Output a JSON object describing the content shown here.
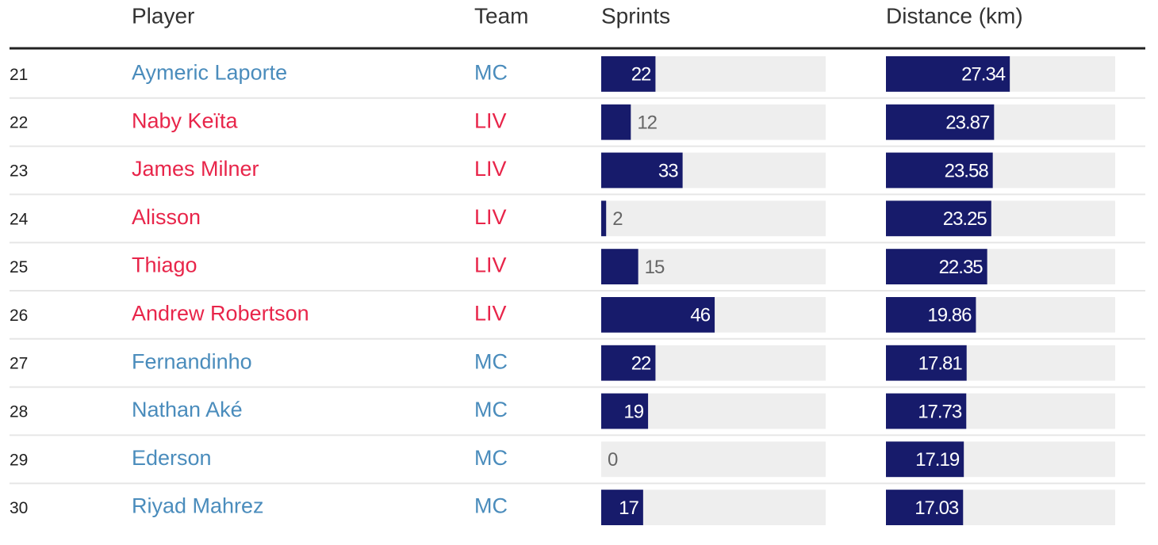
{
  "chart_data": {
    "type": "bar-table",
    "columns": [
      "Player",
      "Team"
    ],
    "ranks": [
      21,
      22,
      23,
      24,
      25,
      26,
      27,
      28,
      29,
      30
    ],
    "players": [
      "Aymeric Laporte",
      "Naby Keïta",
      "James Milner",
      "Alisson",
      "Thiago",
      "Andrew Robertson",
      "Fernandinho",
      "Nathan Aké",
      "Ederson",
      "Riyad Mahrez"
    ],
    "teams": [
      "MC",
      "LIV",
      "LIV",
      "LIV",
      "LIV",
      "LIV",
      "MC",
      "MC",
      "MC",
      "MC"
    ],
    "team_colors": {
      "MC": "#4a8cbc",
      "LIV": "#e8254a"
    },
    "series": [
      {
        "name": "Sprints",
        "color": "#171b6b",
        "values": [
          22,
          12,
          33,
          2,
          15,
          46,
          22,
          19,
          0,
          17
        ],
        "xlim": [
          0,
          91
        ]
      },
      {
        "name": "Distance (km)",
        "color": "#171b6b",
        "values": [
          27.34,
          23.87,
          23.58,
          23.25,
          22.35,
          19.86,
          17.81,
          17.73,
          17.19,
          17.03
        ],
        "xlim": [
          0,
          50.6
        ]
      }
    ]
  }
}
